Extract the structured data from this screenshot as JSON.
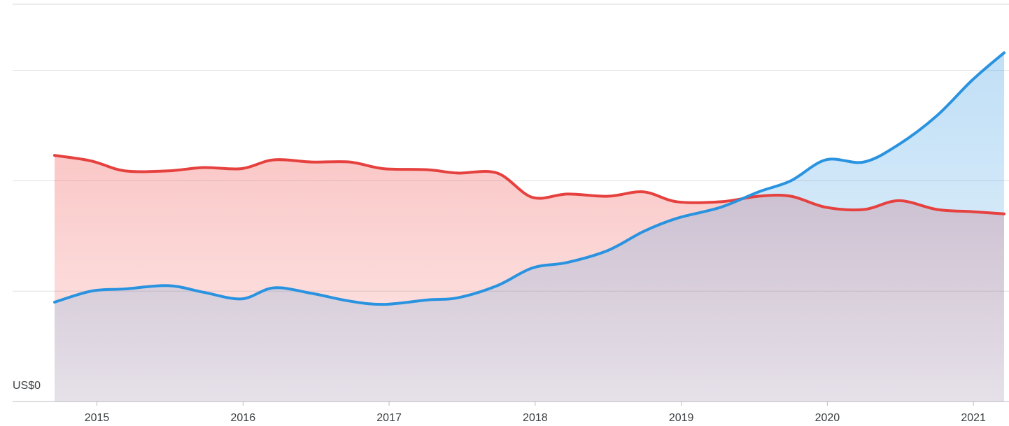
{
  "chart_data": {
    "type": "area",
    "x": [
      2014.71,
      2014.96,
      2015.19,
      2015.49,
      2015.73,
      2015.99,
      2016.21,
      2016.47,
      2016.73,
      2016.96,
      2017.26,
      2017.47,
      2017.74,
      2017.98,
      2018.22,
      2018.5,
      2018.74,
      2018.97,
      2019.27,
      2019.53,
      2019.75,
      2019.99,
      2020.25,
      2020.49,
      2020.75,
      2020.99,
      2021.21
    ],
    "series": [
      {
        "color": "#e5413f",
        "values": [
          2.23,
          2.18,
          2.09,
          2.09,
          2.12,
          2.11,
          2.19,
          2.17,
          2.17,
          2.11,
          2.1,
          2.07,
          2.07,
          1.85,
          1.88,
          1.86,
          1.9,
          1.81,
          1.81,
          1.86,
          1.86,
          1.76,
          1.74,
          1.82,
          1.74,
          1.72,
          1.7
        ]
      },
      {
        "color": "#2a93e0",
        "values": [
          0.9,
          1.0,
          1.02,
          1.05,
          0.99,
          0.93,
          1.03,
          0.98,
          0.91,
          0.88,
          0.92,
          0.94,
          1.05,
          1.21,
          1.26,
          1.37,
          1.54,
          1.66,
          1.76,
          1.9,
          2.0,
          2.19,
          2.17,
          2.33,
          2.59,
          2.91,
          3.16
        ]
      }
    ],
    "xlim": [
      2014.71,
      2021.21
    ],
    "xticks": [
      2015,
      2016,
      2017,
      2018,
      2019,
      2020,
      2021
    ],
    "ylim": [
      0,
      3.6
    ],
    "yticks": [
      {
        "value": 0,
        "label": "US$0"
      }
    ],
    "ygrid": [
      0,
      1,
      2,
      3
    ],
    "grid": true
  }
}
